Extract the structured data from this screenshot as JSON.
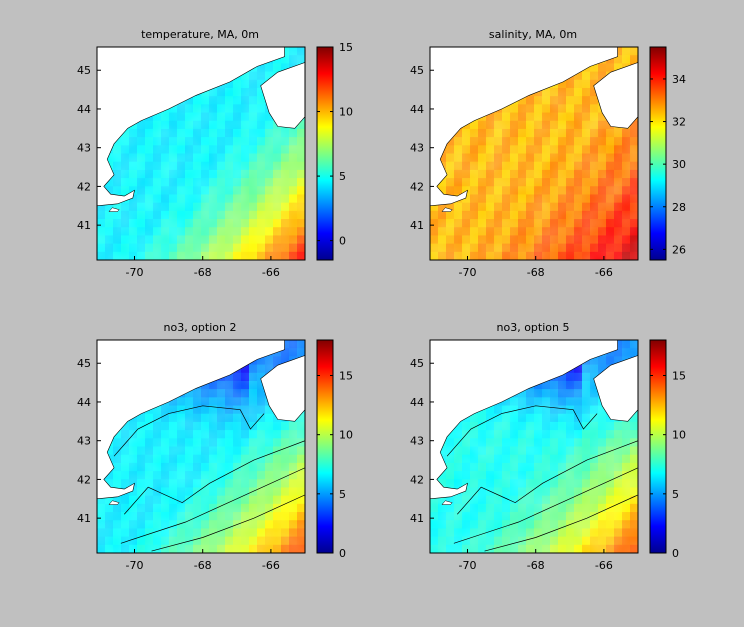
{
  "chart_data": [
    {
      "type": "heatmap",
      "title": "temperature, MA, 0m",
      "xlabel": "",
      "ylabel": "",
      "x_ticks": [
        -70,
        -68,
        -66
      ],
      "y_ticks": [
        41,
        42,
        43,
        44,
        45
      ],
      "xlim": [
        -71.1,
        -65.0
      ],
      "ylim": [
        40.1,
        45.6
      ],
      "colorbar_ticks": [
        0,
        5,
        10,
        15
      ],
      "colorbar_range": [
        -1.5,
        15
      ],
      "colormap": "jet",
      "base_value": 4.5,
      "gradient_note": "increases toward southeast corner",
      "corner_value": 13
    },
    {
      "type": "heatmap",
      "title": "salinity, MA, 0m",
      "xlabel": "",
      "ylabel": "",
      "x_ticks": [
        -70,
        -68,
        -66
      ],
      "y_ticks": [
        41,
        42,
        43,
        44,
        45
      ],
      "xlim": [
        -71.1,
        -65.0
      ],
      "ylim": [
        40.1,
        45.6
      ],
      "colorbar_ticks": [
        26,
        28,
        30,
        32,
        34
      ],
      "colorbar_range": [
        25.5,
        35.5
      ],
      "colormap": "jet",
      "base_value": 32.5,
      "corner_value": 34.8
    },
    {
      "type": "heatmap",
      "title": "no3, option 2",
      "xlabel": "",
      "ylabel": "",
      "x_ticks": [
        -70,
        -68,
        -66
      ],
      "y_ticks": [
        41,
        42,
        43,
        44,
        45
      ],
      "xlim": [
        -71.1,
        -65.0
      ],
      "ylim": [
        40.1,
        45.6
      ],
      "colorbar_ticks": [
        0,
        5,
        10,
        15
      ],
      "colorbar_range": [
        0,
        18
      ],
      "colormap": "jet",
      "base_value": 6.5,
      "corner_value": 15,
      "coast_value": 1
    },
    {
      "type": "heatmap",
      "title": "no3, option 5",
      "xlabel": "",
      "ylabel": "",
      "x_ticks": [
        -70,
        -68,
        -66
      ],
      "y_ticks": [
        41,
        42,
        43,
        44,
        45
      ],
      "xlim": [
        -71.1,
        -65.0
      ],
      "ylim": [
        40.1,
        45.6
      ],
      "colorbar_ticks": [
        0,
        5,
        10,
        15
      ],
      "colorbar_range": [
        0,
        18
      ],
      "colormap": "jet",
      "base_value": 7,
      "corner_value": 15,
      "coast_value": 1
    }
  ],
  "colors": {
    "figure_background": "#c0c0c0",
    "land": "#ffffff"
  }
}
